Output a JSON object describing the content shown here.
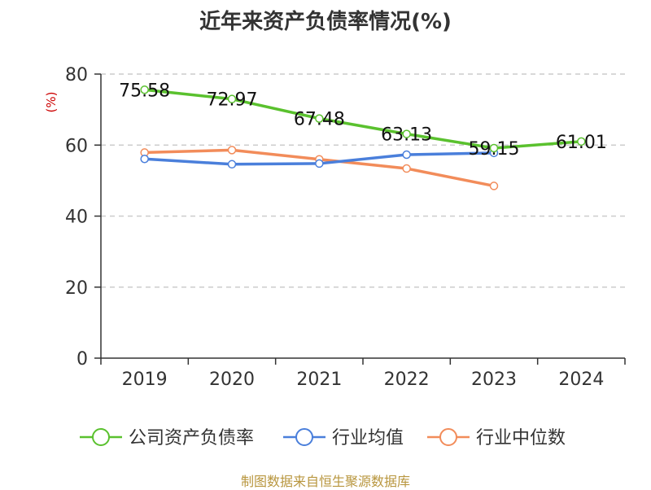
{
  "chart_data": {
    "type": "line",
    "title": "近年来资产负债率情况(%)",
    "ylabel": "(%)",
    "xlabel": "",
    "categories": [
      "2019",
      "2020",
      "2021",
      "2022",
      "2023",
      "2024"
    ],
    "ylim": [
      0,
      80
    ],
    "yticks": [
      0,
      20,
      40,
      60,
      80
    ],
    "grid": true,
    "legend_position": "bottom",
    "series": [
      {
        "name": "公司资产负债率",
        "color": "#5ac12e",
        "values": [
          75.58,
          72.97,
          67.48,
          63.13,
          59.15,
          61.01
        ],
        "data_labels": [
          "75.58",
          "72.97",
          "67.48",
          "63.13",
          "59.15",
          "61.01"
        ]
      },
      {
        "name": "行业均值",
        "color": "#4a7fdb",
        "values": [
          56.1,
          54.6,
          54.8,
          57.3,
          57.8,
          null
        ]
      },
      {
        "name": "行业中位数",
        "color": "#f28c5a",
        "values": [
          57.9,
          58.6,
          56.0,
          53.4,
          48.5,
          null
        ]
      }
    ]
  },
  "source": "制图数据来自恒生聚源数据库"
}
